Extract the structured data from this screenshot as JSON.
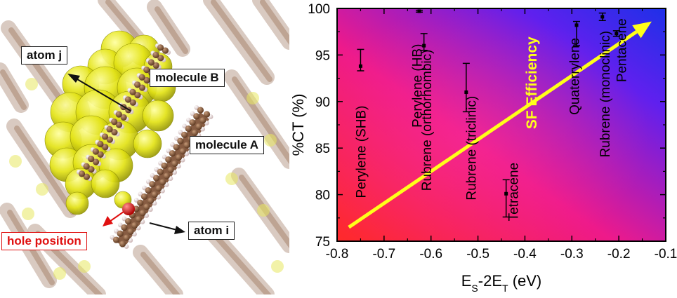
{
  "figure": {
    "labels": {
      "atom_j": "atom j",
      "molecule_b": "molecule B",
      "molecule_a": "molecule A",
      "atom_i": "atom i",
      "hole_position": "hole position"
    },
    "colors": {
      "density": "#e6e619",
      "carbon": "#7a4a2e",
      "hydrogen": "#f2e2e2",
      "hole": "#e01010"
    }
  },
  "chart_data": {
    "type": "scatter",
    "xlabel": "E_S-2E_T (eV)",
    "xlabel_parts": {
      "e1": "E",
      "s1": "S",
      "mid": "-2E",
      "s2": "T",
      "tail": " (eV)"
    },
    "ylabel": "%CT (%)",
    "xlim": [
      -0.8,
      -0.1
    ],
    "ylim": [
      75,
      100
    ],
    "x_ticks": [
      -0.8,
      -0.7,
      -0.6,
      -0.5,
      -0.4,
      -0.3,
      -0.2,
      -0.1
    ],
    "x_tick_labels": [
      "-0.8",
      "-0.7",
      "-0.6",
      "-0.5",
      "-0.4",
      "-0.3",
      "-0.2",
      "-0.1"
    ],
    "y_ticks": [
      75,
      80,
      85,
      90,
      95,
      100
    ],
    "y_tick_labels": [
      "75",
      "80",
      "85",
      "90",
      "95",
      "100"
    ],
    "grid": false,
    "background_gradient": [
      "#ff2a2a",
      "#ee1a8a",
      "#6020ee",
      "#1e30e8"
    ],
    "points": [
      {
        "material": "Perylene (SHB)",
        "x": -0.75,
        "y": 93.8,
        "err_low": 93.3,
        "err_high": 95.6
      },
      {
        "material": "Perylene (HB)",
        "x": -0.625,
        "y": 99.7,
        "err_low": 99.6,
        "err_high": 99.8
      },
      {
        "material": "Rubrene (orthorhombic)",
        "x": -0.615,
        "y": 96.0,
        "err_low": 95.5,
        "err_high": 97.3
      },
      {
        "material": "Rubrene (triclinic)",
        "x": -0.525,
        "y": 91.0,
        "err_low": 88.9,
        "err_high": 94.1
      },
      {
        "material": "Tetracene",
        "x": -0.44,
        "y": 80.1,
        "err_low": 77.6,
        "err_high": 81.6
      },
      {
        "material": "Quaterrylene",
        "x": -0.29,
        "y": 98.2,
        "err_low": 96.0,
        "err_high": 98.6
      },
      {
        "material": "Rubrene (monoclinic)",
        "x": -0.235,
        "y": 99.1,
        "err_low": 98.7,
        "err_high": 99.5
      },
      {
        "material": "Pentacene",
        "x": -0.205,
        "y": 97.3,
        "err_low": 97.0,
        "err_high": 97.6
      }
    ],
    "label_anchors": [
      {
        "text": "Perylene (SHB)",
        "x": -0.75,
        "y": 84.6
      },
      {
        "text": "Perylene (HB)",
        "x": -0.63,
        "y": 91.7
      },
      {
        "text": "Rubrene (orthorhombic)",
        "x": -0.61,
        "y": 88.0
      },
      {
        "text": "Rubrene (triclinic)",
        "x": -0.515,
        "y": 85.0
      },
      {
        "text": "Tetracene",
        "x": -0.425,
        "y": 80.3
      },
      {
        "text": "Quaterrylene",
        "x": -0.295,
        "y": 92.7
      },
      {
        "text": "Rubrene (monoclinic)",
        "x": -0.23,
        "y": 90.8
      },
      {
        "text": "Pentacene",
        "x": -0.195,
        "y": 95.5
      }
    ],
    "arrow": {
      "label": "SF  Efficiency",
      "label_x": -0.375,
      "label_y": 92.0,
      "from": [
        -0.775,
        76.5
      ],
      "to": [
        -0.13,
        98.6
      ],
      "color": "#ffff1a"
    }
  }
}
